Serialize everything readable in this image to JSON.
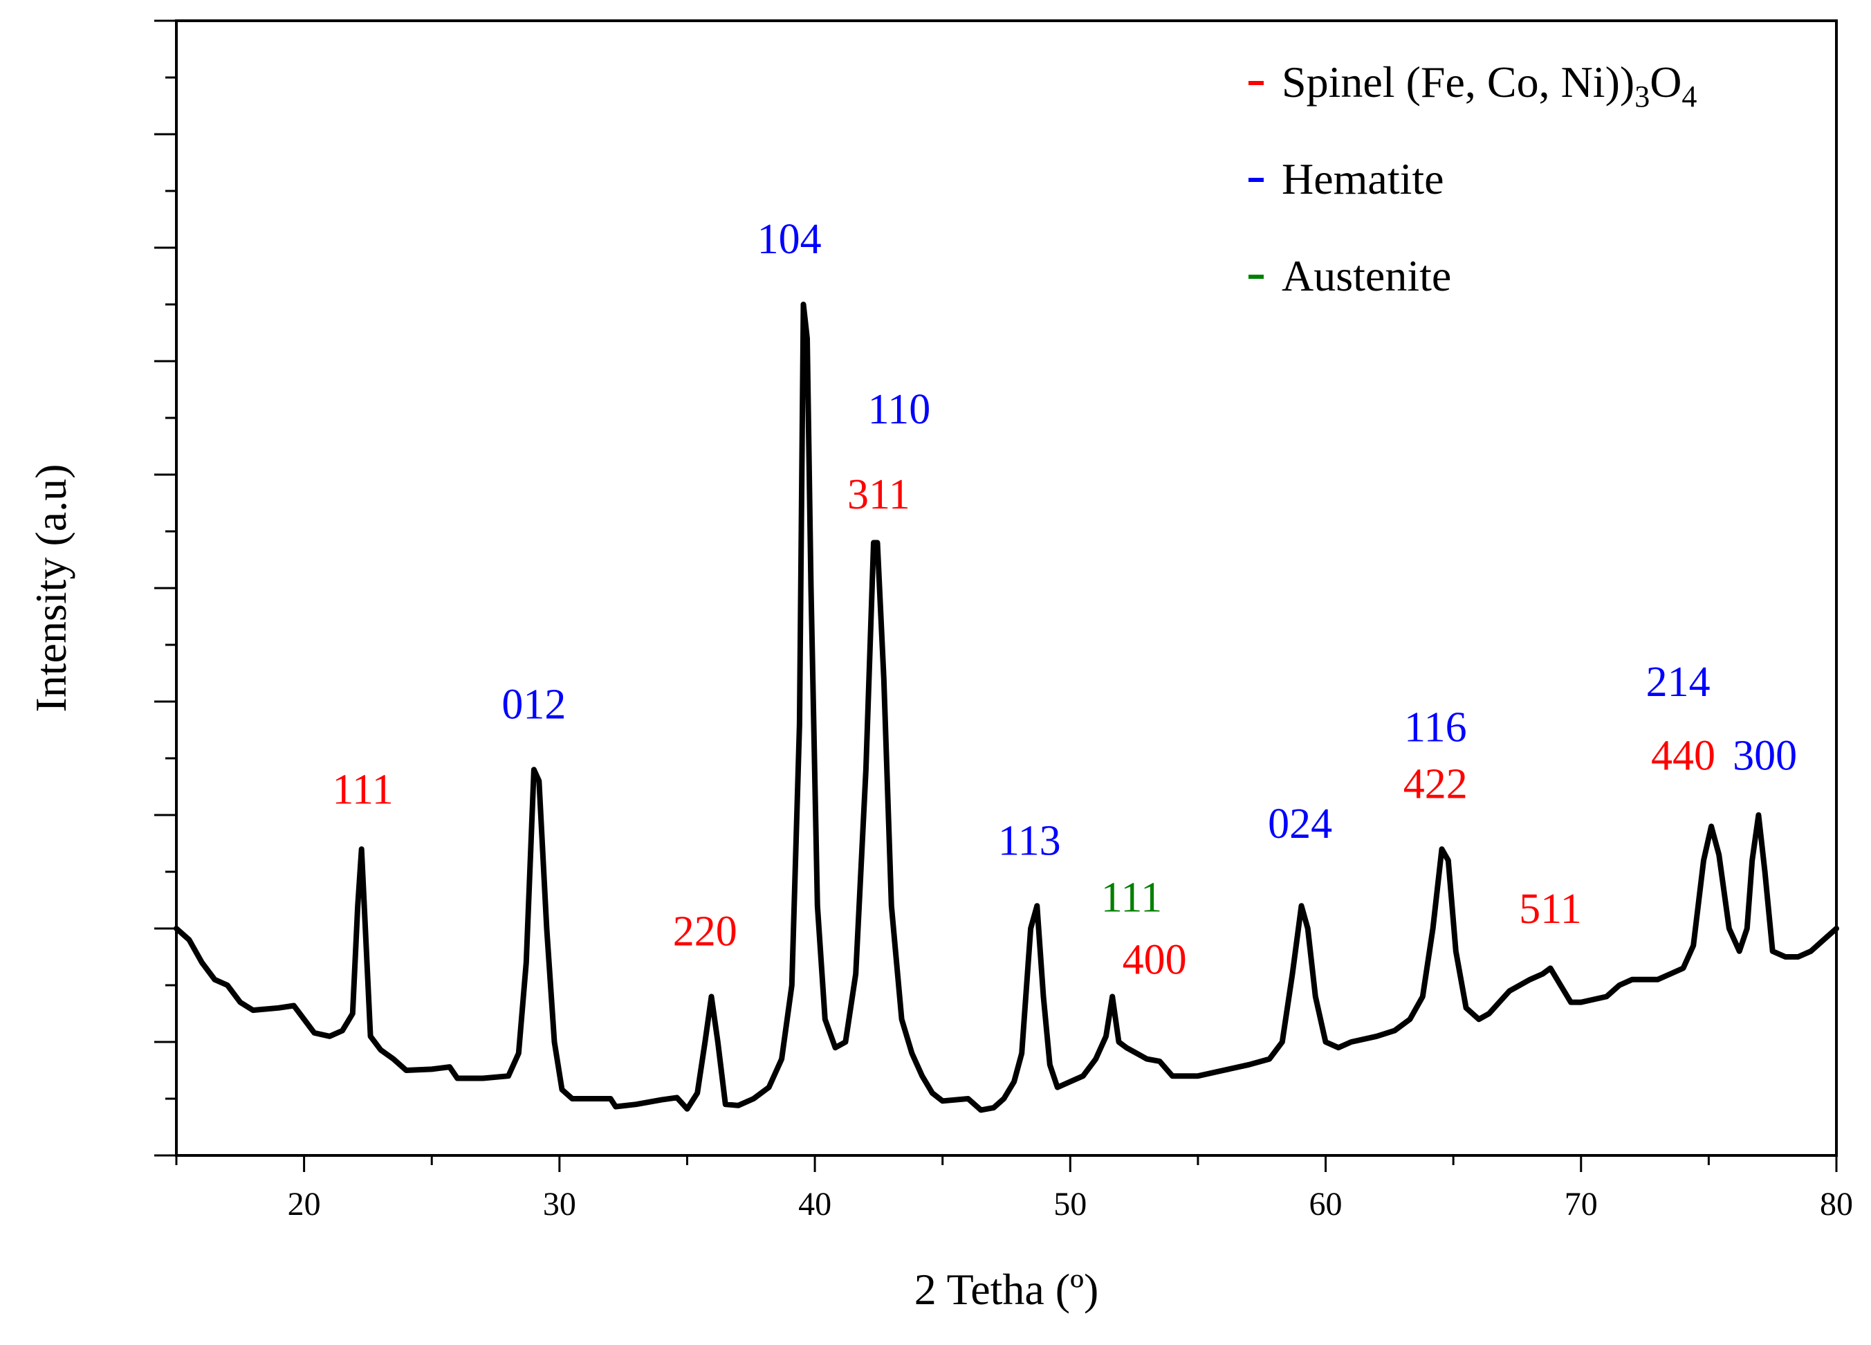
{
  "chart_data": {
    "type": "line",
    "title": "",
    "xlabel": "2 Tetha (º)",
    "ylabel": "Intensity (a.u)",
    "xlim": [
      15,
      80
    ],
    "ylim": [
      0,
      100
    ],
    "x_ticks": [
      20,
      30,
      40,
      50,
      60,
      70,
      80
    ],
    "y_ticks_hidden_labels": true,
    "grid": false,
    "legend_position": "top-right",
    "colors": {
      "spinel": "#ff0000",
      "hematite": "#0000ff",
      "austenite": "#008000",
      "line": "#000000"
    },
    "legend": [
      {
        "phase": "spinel",
        "name": "Spinel (Fe, Co, Ni)",
        "sub1": "3",
        "mid": "O",
        "sub2": "4"
      },
      {
        "phase": "hematite",
        "name": "Hematite"
      },
      {
        "phase": "austenite",
        "name": "Austenite"
      }
    ],
    "series": [
      {
        "name": "XRD pattern",
        "points": [
          [
            15.0,
            20.0
          ],
          [
            15.5,
            19.0
          ],
          [
            16.0,
            17.0
          ],
          [
            16.5,
            15.5
          ],
          [
            17.0,
            15.0
          ],
          [
            17.5,
            13.5
          ],
          [
            18.0,
            12.8
          ],
          [
            19.0,
            13.0
          ],
          [
            19.6,
            13.2
          ],
          [
            20.0,
            12.0
          ],
          [
            20.4,
            10.8
          ],
          [
            21.0,
            10.5
          ],
          [
            21.5,
            11.0
          ],
          [
            21.9,
            12.5
          ],
          [
            22.1,
            22.0
          ],
          [
            22.25,
            27.0
          ],
          [
            22.4,
            20.0
          ],
          [
            22.6,
            10.5
          ],
          [
            23.0,
            9.3
          ],
          [
            23.5,
            8.5
          ],
          [
            24.0,
            7.5
          ],
          [
            25.0,
            7.6
          ],
          [
            25.7,
            7.8
          ],
          [
            26.0,
            6.8
          ],
          [
            27.0,
            6.8
          ],
          [
            28.0,
            7.0
          ],
          [
            28.4,
            9.0
          ],
          [
            28.7,
            17.0
          ],
          [
            29.0,
            34.0
          ],
          [
            29.2,
            33.0
          ],
          [
            29.5,
            20.0
          ],
          [
            29.8,
            10.0
          ],
          [
            30.1,
            5.8
          ],
          [
            30.5,
            5.0
          ],
          [
            31.0,
            5.0
          ],
          [
            32.0,
            5.0
          ],
          [
            32.2,
            4.3
          ],
          [
            33.0,
            4.5
          ],
          [
            34.0,
            4.9
          ],
          [
            34.6,
            5.1
          ],
          [
            35.0,
            4.1
          ],
          [
            35.4,
            5.5
          ],
          [
            35.7,
            10.0
          ],
          [
            35.95,
            14.0
          ],
          [
            36.2,
            10.0
          ],
          [
            36.5,
            4.5
          ],
          [
            37.0,
            4.4
          ],
          [
            37.6,
            5.0
          ],
          [
            38.2,
            6.0
          ],
          [
            38.7,
            8.5
          ],
          [
            39.1,
            15.0
          ],
          [
            39.4,
            38.0
          ],
          [
            39.55,
            75.0
          ],
          [
            39.7,
            72.0
          ],
          [
            39.85,
            50.0
          ],
          [
            40.1,
            22.0
          ],
          [
            40.4,
            12.0
          ],
          [
            40.8,
            9.5
          ],
          [
            41.2,
            10.0
          ],
          [
            41.6,
            16.0
          ],
          [
            42.0,
            34.0
          ],
          [
            42.3,
            54.0
          ],
          [
            42.45,
            54.0
          ],
          [
            42.7,
            42.0
          ],
          [
            43.0,
            22.0
          ],
          [
            43.4,
            12.0
          ],
          [
            43.8,
            9.0
          ],
          [
            44.2,
            7.0
          ],
          [
            44.6,
            5.5
          ],
          [
            45.0,
            4.8
          ],
          [
            46.0,
            5.0
          ],
          [
            46.5,
            4.0
          ],
          [
            47.0,
            4.2
          ],
          [
            47.4,
            5.0
          ],
          [
            47.8,
            6.5
          ],
          [
            48.1,
            9.0
          ],
          [
            48.45,
            20.0
          ],
          [
            48.7,
            22.0
          ],
          [
            48.95,
            14.0
          ],
          [
            49.2,
            8.0
          ],
          [
            49.5,
            6.0
          ],
          [
            50.0,
            6.5
          ],
          [
            50.5,
            7.0
          ],
          [
            51.0,
            8.5
          ],
          [
            51.4,
            10.5
          ],
          [
            51.65,
            14.0
          ],
          [
            51.9,
            10.0
          ],
          [
            52.2,
            9.5
          ],
          [
            52.6,
            9.0
          ],
          [
            53.0,
            8.5
          ],
          [
            53.5,
            8.3
          ],
          [
            54.0,
            7.0
          ],
          [
            55.0,
            7.0
          ],
          [
            56.0,
            7.5
          ],
          [
            57.0,
            8.0
          ],
          [
            57.8,
            8.5
          ],
          [
            58.3,
            10.0
          ],
          [
            58.7,
            16.0
          ],
          [
            59.05,
            22.0
          ],
          [
            59.3,
            20.0
          ],
          [
            59.6,
            14.0
          ],
          [
            60.0,
            10.0
          ],
          [
            60.5,
            9.5
          ],
          [
            61.0,
            10.0
          ],
          [
            62.0,
            10.5
          ],
          [
            62.7,
            11.0
          ],
          [
            63.3,
            12.0
          ],
          [
            63.8,
            14.0
          ],
          [
            64.2,
            20.0
          ],
          [
            64.55,
            27.0
          ],
          [
            64.8,
            26.0
          ],
          [
            65.1,
            18.0
          ],
          [
            65.5,
            13.0
          ],
          [
            66.0,
            12.0
          ],
          [
            66.4,
            12.5
          ],
          [
            66.8,
            13.5
          ],
          [
            67.2,
            14.5
          ],
          [
            67.6,
            15.0
          ],
          [
            68.0,
            15.5
          ],
          [
            68.5,
            16.0
          ],
          [
            68.8,
            16.5
          ],
          [
            69.2,
            15.0
          ],
          [
            69.6,
            13.5
          ],
          [
            70.0,
            13.5
          ],
          [
            71.0,
            14.0
          ],
          [
            71.5,
            15.0
          ],
          [
            72.0,
            15.5
          ],
          [
            73.0,
            15.5
          ],
          [
            73.5,
            16.0
          ],
          [
            74.0,
            16.5
          ],
          [
            74.4,
            18.5
          ],
          [
            74.8,
            26.0
          ],
          [
            75.1,
            29.0
          ],
          [
            75.4,
            26.5
          ],
          [
            75.8,
            20.0
          ],
          [
            76.2,
            18.0
          ],
          [
            76.5,
            20.0
          ],
          [
            76.7,
            26.0
          ],
          [
            76.95,
            30.0
          ],
          [
            77.2,
            25.0
          ],
          [
            77.5,
            18.0
          ],
          [
            78.0,
            17.5
          ],
          [
            78.5,
            17.5
          ],
          [
            79.0,
            18.0
          ],
          [
            79.5,
            19.0
          ],
          [
            80.0,
            20.0
          ]
        ]
      }
    ],
    "annotations": [
      {
        "text": "111",
        "x": 22.3,
        "y": 31.0,
        "phase": "spinel"
      },
      {
        "text": "012",
        "x": 29.0,
        "y": 38.5,
        "phase": "hematite"
      },
      {
        "text": "220",
        "x": 35.7,
        "y": 18.5,
        "phase": "spinel"
      },
      {
        "text": "104",
        "x": 39.0,
        "y": 79.5,
        "phase": "hematite"
      },
      {
        "text": "110",
        "x": 43.3,
        "y": 64.5,
        "phase": "hematite"
      },
      {
        "text": "311",
        "x": 42.5,
        "y": 57.0,
        "phase": "spinel"
      },
      {
        "text": "113",
        "x": 48.4,
        "y": 26.5,
        "phase": "hematite"
      },
      {
        "text": "111",
        "x": 52.4,
        "y": 21.5,
        "phase": "austenite"
      },
      {
        "text": "400",
        "x": 53.3,
        "y": 16.0,
        "phase": "spinel"
      },
      {
        "text": "024",
        "x": 59.0,
        "y": 28.0,
        "phase": "hematite"
      },
      {
        "text": "116",
        "x": 64.3,
        "y": 36.5,
        "phase": "hematite"
      },
      {
        "text": "422",
        "x": 64.3,
        "y": 31.5,
        "phase": "spinel"
      },
      {
        "text": "511",
        "x": 68.8,
        "y": 20.5,
        "phase": "spinel"
      },
      {
        "text": "214",
        "x": 73.8,
        "y": 40.5,
        "phase": "hematite"
      },
      {
        "text": "440",
        "x": 74.0,
        "y": 34.0,
        "phase": "spinel"
      },
      {
        "text": "300",
        "x": 77.2,
        "y": 34.0,
        "phase": "hematite"
      }
    ]
  }
}
